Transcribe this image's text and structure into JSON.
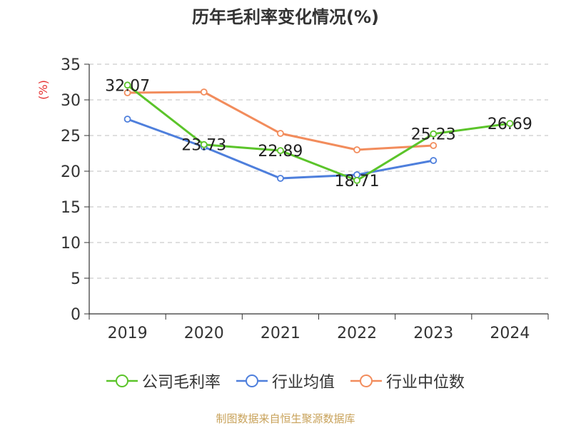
{
  "chart_data": {
    "type": "line",
    "title": "历年毛利率变化情况(%)",
    "ylabel": "(%)",
    "xlabel": "",
    "categories": [
      "2019",
      "2020",
      "2021",
      "2022",
      "2023",
      "2024"
    ],
    "ylim": [
      0,
      35
    ],
    "yticks": [
      0,
      5,
      10,
      15,
      20,
      25,
      30,
      35
    ],
    "grid": true,
    "legend_position": "bottom",
    "series": [
      {
        "name": "公司毛利率",
        "color": "#5bc42a",
        "values": [
          32.07,
          23.73,
          22.89,
          18.71,
          25.23,
          26.69
        ],
        "labels": [
          "32.07",
          "23.73",
          "22.89",
          "18.71",
          "25.23",
          "26.69"
        ]
      },
      {
        "name": "行业均值",
        "color": "#4e7fdc",
        "values": [
          27.3,
          23.4,
          19.0,
          19.5,
          21.5,
          null
        ]
      },
      {
        "name": "行业中位数",
        "color": "#f28c5c",
        "values": [
          31.0,
          31.1,
          25.3,
          23.0,
          23.6,
          null
        ]
      }
    ]
  },
  "source": "制图数据来自恒生聚源数据库"
}
